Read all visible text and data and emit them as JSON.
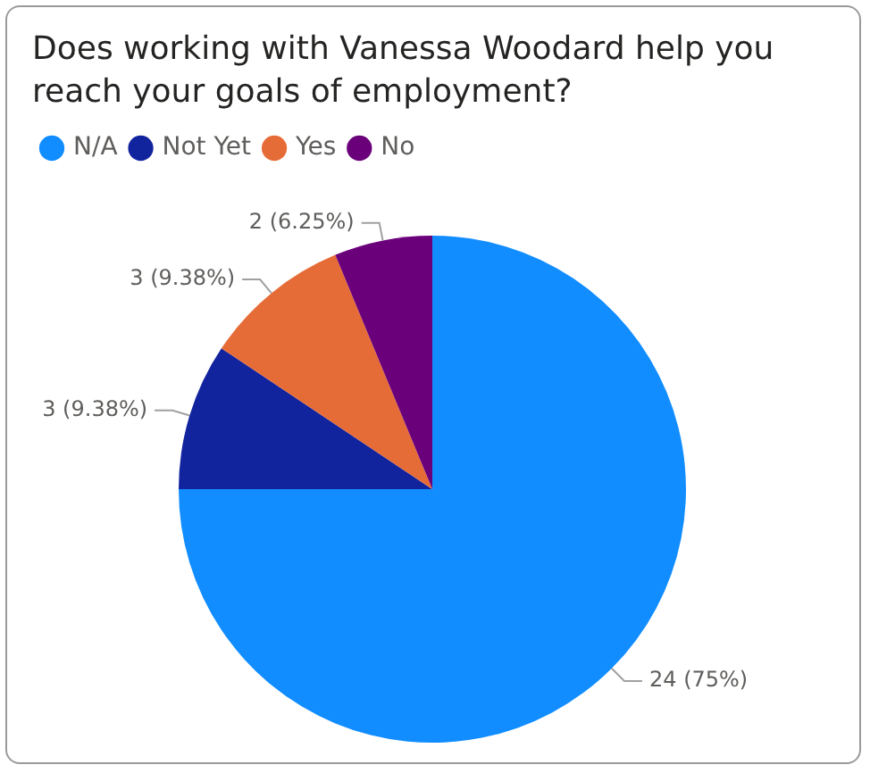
{
  "chart_data": {
    "type": "pie",
    "title": "Does working with Vanessa Woodard help you reach your goals of employment?",
    "categories": [
      "N/A",
      "Not Yet",
      "Yes",
      "No"
    ],
    "values": [
      24,
      3,
      3,
      2
    ],
    "colors": [
      "#118dff",
      "#12239e",
      "#e66c37",
      "#6b007b"
    ],
    "value_labels": [
      "24 (75%)",
      "3 (9.38%)",
      "3 (9.38%)",
      "2 (6.25%)"
    ],
    "legend": "top left"
  }
}
